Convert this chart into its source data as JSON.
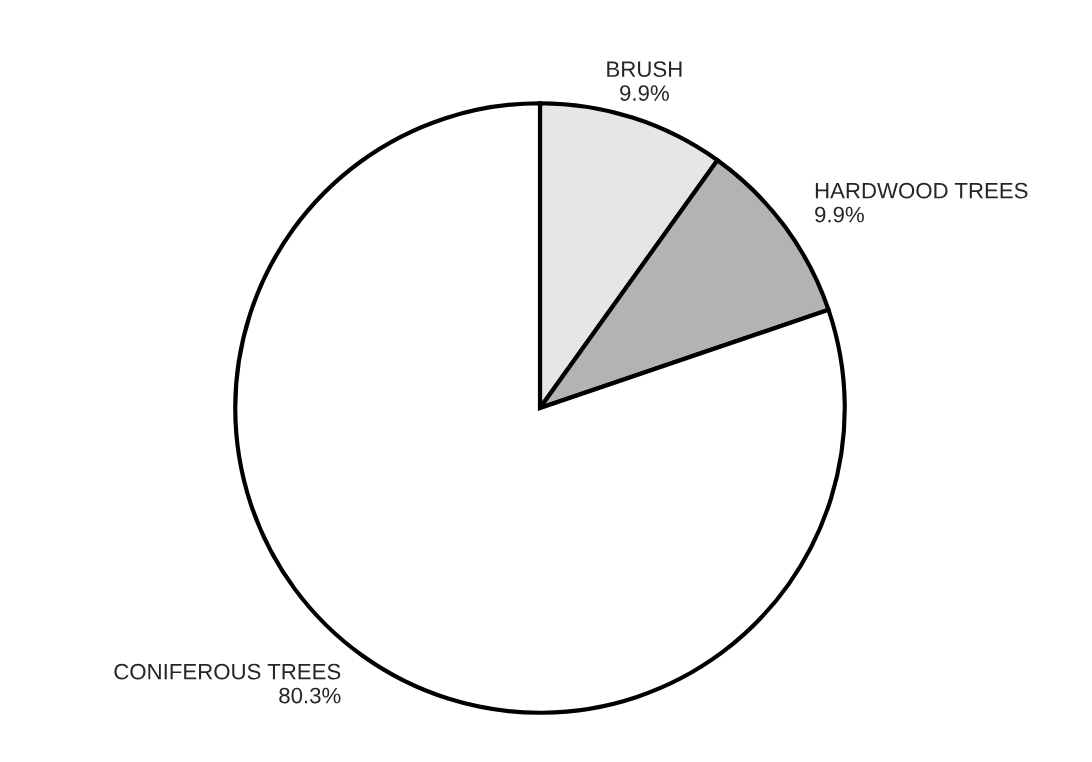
{
  "chart_data": {
    "type": "pie",
    "categories": [
      "BRUSH",
      "HARDWOOD TREES",
      "CONIFEROUS TREES"
    ],
    "values": [
      9.9,
      9.9,
      80.3
    ],
    "value_labels": [
      "9.9%",
      "9.9%",
      "80.3%"
    ],
    "colors": [
      "#e6e6e6",
      "#b3b3b3",
      "#ffffff"
    ],
    "legend": false
  }
}
